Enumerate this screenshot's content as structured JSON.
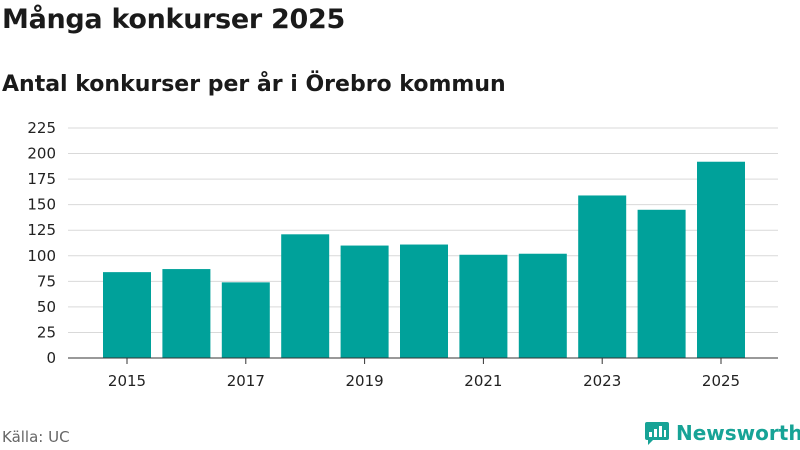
{
  "header": {
    "title": "Många konkurser 2025",
    "subtitle": "Antal konkurser per år i Örebro kommun"
  },
  "footer": {
    "source": "Källa: UC",
    "brand": "Newsworthy",
    "brand_icon": "bar-chart-logo-icon"
  },
  "colors": {
    "bar": "#00a19a",
    "grid": "#d9d9d9",
    "brand": "#17a396"
  },
  "chart_data": {
    "type": "bar",
    "title": "Antal konkurser per år i Örebro kommun",
    "xlabel": "",
    "ylabel": "",
    "categories": [
      "2015",
      "2016",
      "2017",
      "2018",
      "2019",
      "2020",
      "2021",
      "2022",
      "2023",
      "2024",
      "2025"
    ],
    "values": [
      84,
      87,
      74,
      121,
      110,
      111,
      101,
      102,
      159,
      145,
      192
    ],
    "x_tick_labels": [
      "2015",
      "2017",
      "2019",
      "2021",
      "2023",
      "2025"
    ],
    "y_ticks": [
      0,
      25,
      50,
      75,
      100,
      125,
      150,
      175,
      200,
      225
    ],
    "ylim": [
      0,
      225
    ],
    "grid": true
  }
}
